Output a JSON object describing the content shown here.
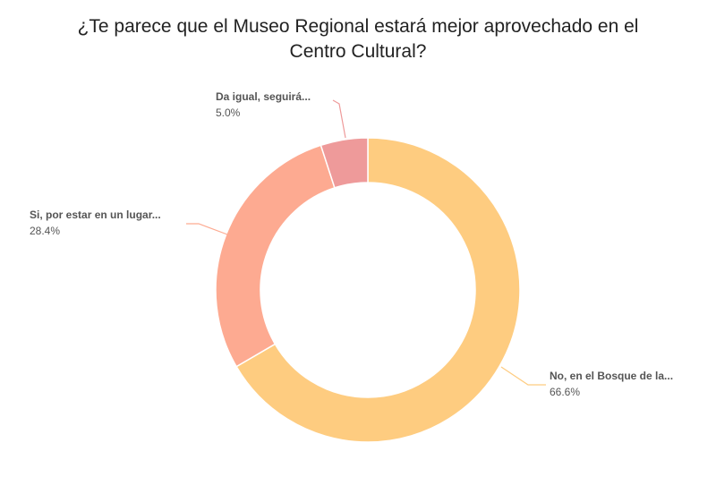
{
  "chart_data": {
    "type": "pie",
    "variant": "donut",
    "title_lines": [
      "¿Te parece que el Museo Regional estará mejor aprovechado en el",
      "Centro Cultural?"
    ],
    "slices": [
      {
        "label": "No, en el Bosque de la...",
        "value": 66.6,
        "value_label": "66.6%",
        "color": "#FECC80"
      },
      {
        "label": "Si, por estar en un lugar...",
        "value": 28.4,
        "value_label": "28.4%",
        "color": "#FDAA91"
      },
      {
        "label": "Da igual, seguirá...",
        "value": 5.0,
        "value_label": "5.0%",
        "color": "#EE9A9A"
      }
    ],
    "start": "top",
    "direction": "clockwise",
    "legend": "none"
  }
}
